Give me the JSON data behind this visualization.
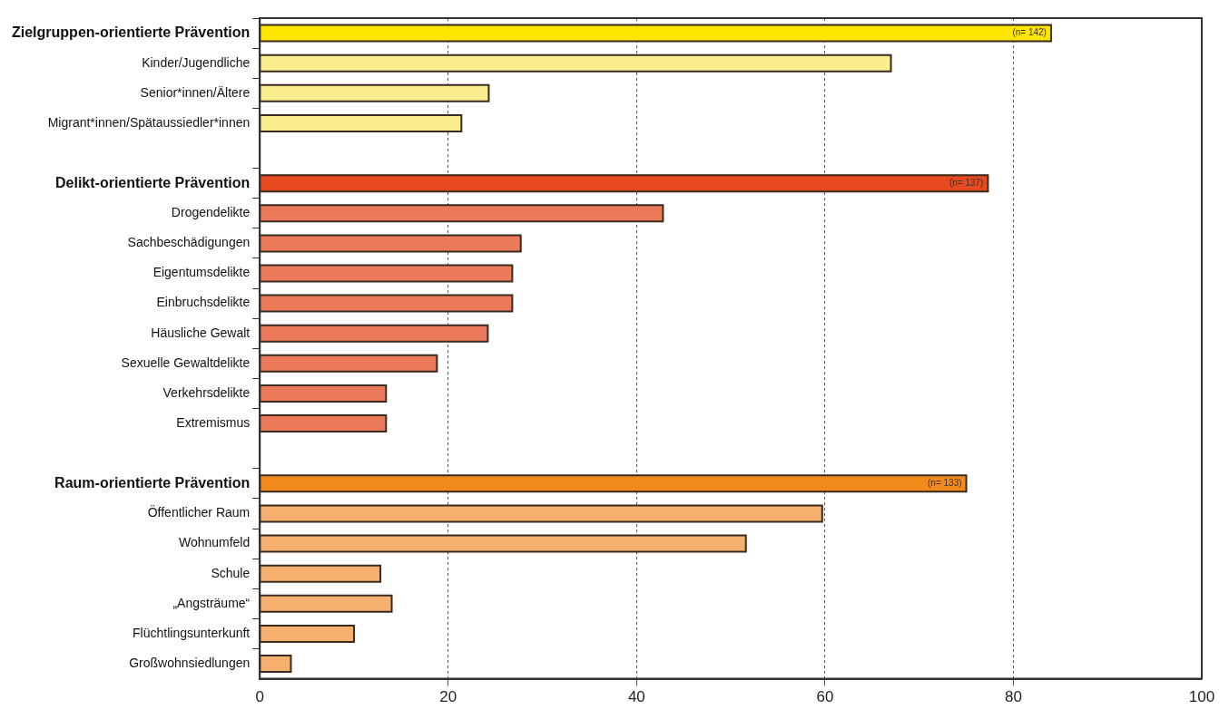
{
  "chart_data": {
    "type": "bar",
    "orientation": "horizontal",
    "categories": [
      "Zielgruppen-orientierte Prävention",
      "Kinder/Jugendliche",
      "Senior*innen/Ältere",
      "Migrant*innen/Spätaussiedler*innen",
      null,
      "Delikt-orientierte Prävention",
      "Drogendelikte",
      "Sachbeschädigungen",
      "Eigentumsdelikte",
      "Einbruchsdelikte",
      "Häusliche Gewalt",
      "Sexuelle Gewaltdelikte",
      "Verkehrsdelikte",
      "Extremismus",
      null,
      "Raum-orientierte Prävention",
      "Öffentlicher Raum",
      "Wohnumfeld",
      "Schule",
      "„Angsträume“",
      "Flüchtlingsunterkunft",
      "Großwohnsiedlungen"
    ],
    "values": [
      84,
      67,
      24.3,
      21.4,
      null,
      77.3,
      42.8,
      27.7,
      26.8,
      26.8,
      24.2,
      18.8,
      13.4,
      13.4,
      null,
      75,
      59.7,
      51.6,
      12.8,
      14,
      10,
      3.3
    ],
    "colors": [
      "#ffe600",
      "#fbee8e",
      "#fbee8e",
      "#fbee8e",
      "#ffffff",
      "#e64a1e",
      "#ec7a5a",
      "#ec7a5a",
      "#ec7a5a",
      "#ec7a5a",
      "#ec7a5a",
      "#ec7a5a",
      "#ec7a5a",
      "#ec7a5a",
      "#ffffff",
      "#f28a1e",
      "#f5b070",
      "#f5b070",
      "#f5b070",
      "#f5b070",
      "#f5b070",
      "#f5b070"
    ],
    "xlim": [
      0,
      100
    ],
    "xticks": [
      0,
      20,
      40,
      60,
      80,
      100
    ],
    "grid": "x",
    "legend": false,
    "annotations": [
      {
        "text": "(n= 142)",
        "x": 84,
        "y": "Zielgruppen-orientierte Prävention"
      },
      {
        "text": "(n= 137)",
        "x": 77.3,
        "y": "Delikt-orientierte Prävention"
      },
      {
        "text": "(n= 133)",
        "x": 75,
        "y": "Raum-orientierte Prävention"
      }
    ]
  }
}
